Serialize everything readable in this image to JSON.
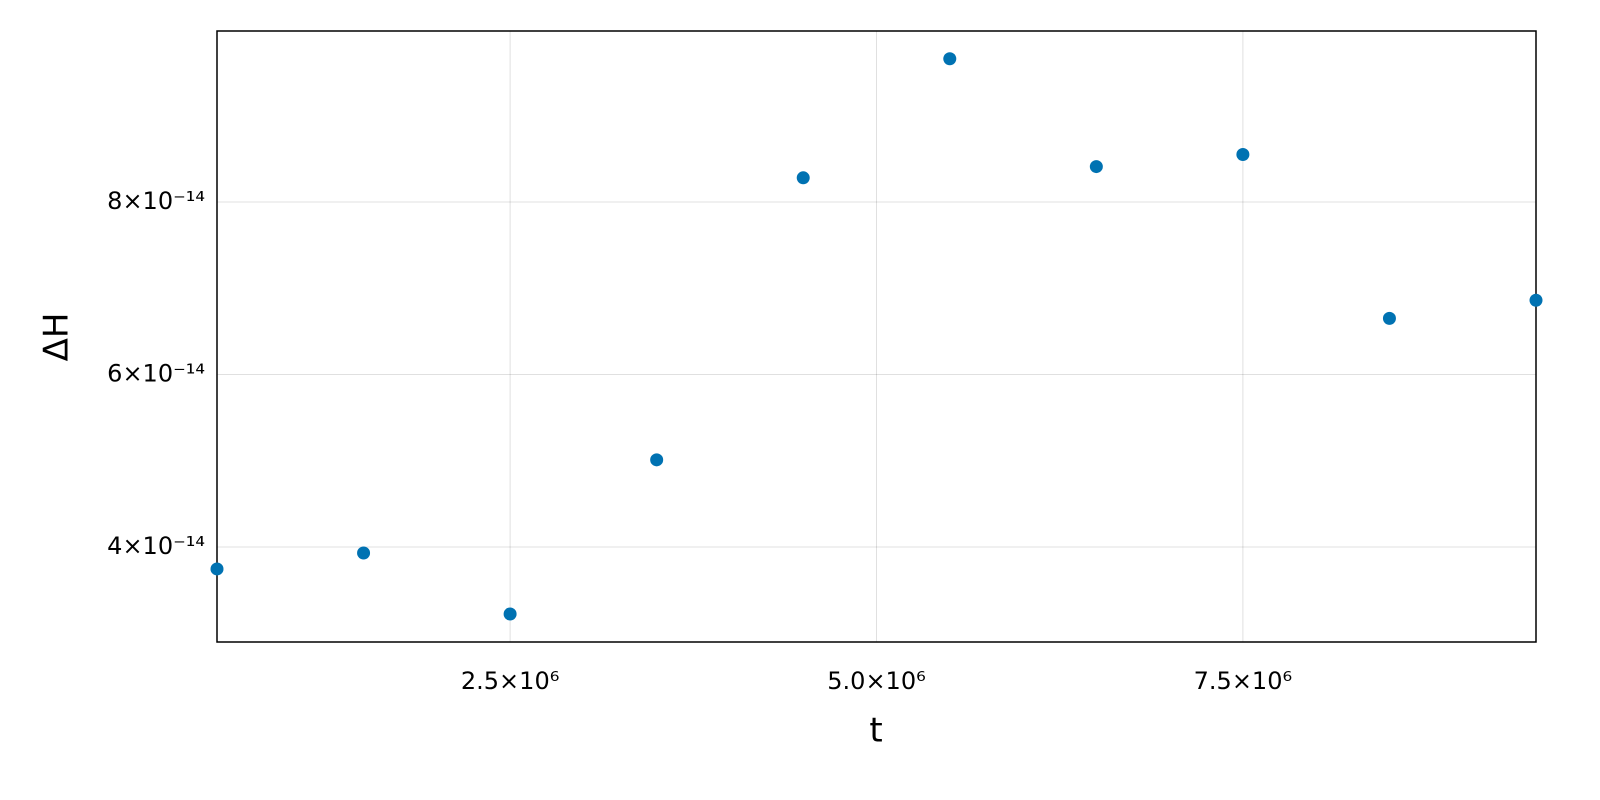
{
  "chart_data": {
    "type": "scatter",
    "x_label": "t",
    "y_label": "ΔH",
    "x": [
      500000,
      1500000,
      2500000,
      3500000,
      4500000,
      5500000,
      6500000,
      7500000,
      8500000,
      9500000
    ],
    "series": [
      {
        "color": "#0072b2",
        "values": [
          3.745e-14,
          3.93e-14,
          3.223e-14,
          5.01e-14,
          8.28e-14,
          9.66e-14,
          8.41e-14,
          8.55e-14,
          6.65e-14,
          6.86e-14
        ]
      }
    ],
    "xlim": [
      500000,
      9500000
    ],
    "ylim": [
      2.898e-14,
      9.982e-14
    ],
    "xticks": [
      {
        "value": 2500000,
        "label": "2.5×10⁶"
      },
      {
        "value": 5000000,
        "label": "5.0×10⁶"
      },
      {
        "value": 7500000,
        "label": "7.5×10⁶"
      }
    ],
    "yticks": [
      {
        "value": 4e-14,
        "label": "4×10⁻¹⁴"
      },
      {
        "value": 6e-14,
        "label": "6×10⁻¹⁴"
      },
      {
        "value": 8e-14,
        "label": "8×10⁻¹⁴"
      }
    ],
    "grid": true
  }
}
